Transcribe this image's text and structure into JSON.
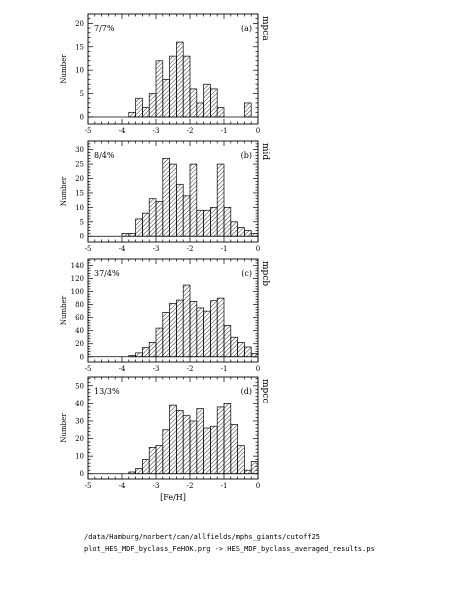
{
  "colors": {
    "ink": "#000000",
    "paper": "#ffffff"
  },
  "chart_data": [
    {
      "type": "bar",
      "panel_letter": "(a)",
      "annotation": "7/7%",
      "side_label": "mpca",
      "ylabel": "Number",
      "xlim": [
        -5,
        0
      ],
      "ylim": [
        -1.5,
        22
      ],
      "yticks": [
        0,
        5,
        10,
        15,
        20
      ],
      "xticks": [
        -5,
        -4,
        -3,
        -2,
        -1,
        0
      ],
      "bin_width": 0.2,
      "bin_left_edges": [
        -4.6,
        -4.4,
        -4.2,
        -4.0,
        -3.8,
        -3.6,
        -3.4,
        -3.2,
        -3.0,
        -2.8,
        -2.6,
        -2.4,
        -2.2,
        -2.0,
        -1.8,
        -1.6,
        -1.4,
        -1.2,
        -1.0,
        -0.8,
        -0.6,
        -0.4,
        -0.2
      ],
      "values": [
        0,
        0,
        0,
        0,
        1,
        4,
        2,
        5,
        12,
        8,
        13,
        16,
        13,
        6,
        3,
        7,
        6,
        2,
        0,
        0,
        0,
        3,
        0
      ]
    },
    {
      "type": "bar",
      "panel_letter": "(b)",
      "annotation": "8/4%",
      "side_label": "mid",
      "ylabel": "Number",
      "xlim": [
        -5,
        0
      ],
      "ylim": [
        -2,
        33
      ],
      "yticks": [
        0,
        5,
        10,
        15,
        20,
        25,
        30
      ],
      "xticks": [
        -5,
        -4,
        -3,
        -2,
        -1,
        0
      ],
      "bin_width": 0.2,
      "bin_left_edges": [
        -4.6,
        -4.4,
        -4.2,
        -4.0,
        -3.8,
        -3.6,
        -3.4,
        -3.2,
        -3.0,
        -2.8,
        -2.6,
        -2.4,
        -2.2,
        -2.0,
        -1.8,
        -1.6,
        -1.4,
        -1.2,
        -1.0,
        -0.8,
        -0.6,
        -0.4,
        -0.2
      ],
      "values": [
        0,
        0,
        0,
        1,
        1,
        6,
        8,
        13,
        12,
        27,
        25,
        18,
        14,
        25,
        9,
        9,
        10,
        25,
        10,
        5,
        3,
        2,
        1
      ]
    },
    {
      "type": "bar",
      "panel_letter": "(c)",
      "annotation": "37/4%",
      "side_label": "mpcb",
      "ylabel": "Number",
      "xlim": [
        -5,
        0
      ],
      "ylim": [
        -8,
        150
      ],
      "yticks": [
        0,
        20,
        40,
        60,
        80,
        100,
        120,
        140
      ],
      "xticks": [
        -5,
        -4,
        -3,
        -2,
        -1,
        0
      ],
      "bin_width": 0.2,
      "bin_left_edges": [
        -4.6,
        -4.4,
        -4.2,
        -4.0,
        -3.8,
        -3.6,
        -3.4,
        -3.2,
        -3.0,
        -2.8,
        -2.6,
        -2.4,
        -2.2,
        -2.0,
        -1.8,
        -1.6,
        -1.4,
        -1.2,
        -1.0,
        -0.8,
        -0.6,
        -0.4,
        -0.2
      ],
      "values": [
        0,
        0,
        0,
        0,
        2,
        6,
        14,
        22,
        44,
        68,
        82,
        87,
        110,
        85,
        75,
        70,
        86,
        90,
        48,
        30,
        22,
        15,
        5
      ]
    },
    {
      "type": "bar",
      "panel_letter": "(d)",
      "annotation": "13/3%",
      "side_label": "mpcc",
      "ylabel": "Number",
      "xlabel": "[Fe/H]",
      "xlim": [
        -5,
        0
      ],
      "ylim": [
        -3,
        55
      ],
      "yticks": [
        0,
        10,
        20,
        30,
        40,
        50
      ],
      "xticks": [
        -5,
        -4,
        -3,
        -2,
        -1,
        0
      ],
      "bin_width": 0.2,
      "bin_left_edges": [
        -4.6,
        -4.4,
        -4.2,
        -4.0,
        -3.8,
        -3.6,
        -3.4,
        -3.2,
        -3.0,
        -2.8,
        -2.6,
        -2.4,
        -2.2,
        -2.0,
        -1.8,
        -1.6,
        -1.4,
        -1.2,
        -1.0,
        -0.8,
        -0.6,
        -0.4,
        -0.2
      ],
      "values": [
        0,
        0,
        0,
        0,
        1,
        3,
        8,
        15,
        16,
        25,
        39,
        36,
        33,
        30,
        37,
        26,
        27,
        38,
        40,
        28,
        16,
        2,
        7
      ]
    }
  ],
  "footer": {
    "path": "/data/Hamburg/norbert/can/allfields/mphs_giants/cutoff25",
    "command": "plot_HES_MDF_byclass_FeHOK.prg  -> HES_MDF_byclass_averaged_results.ps"
  }
}
